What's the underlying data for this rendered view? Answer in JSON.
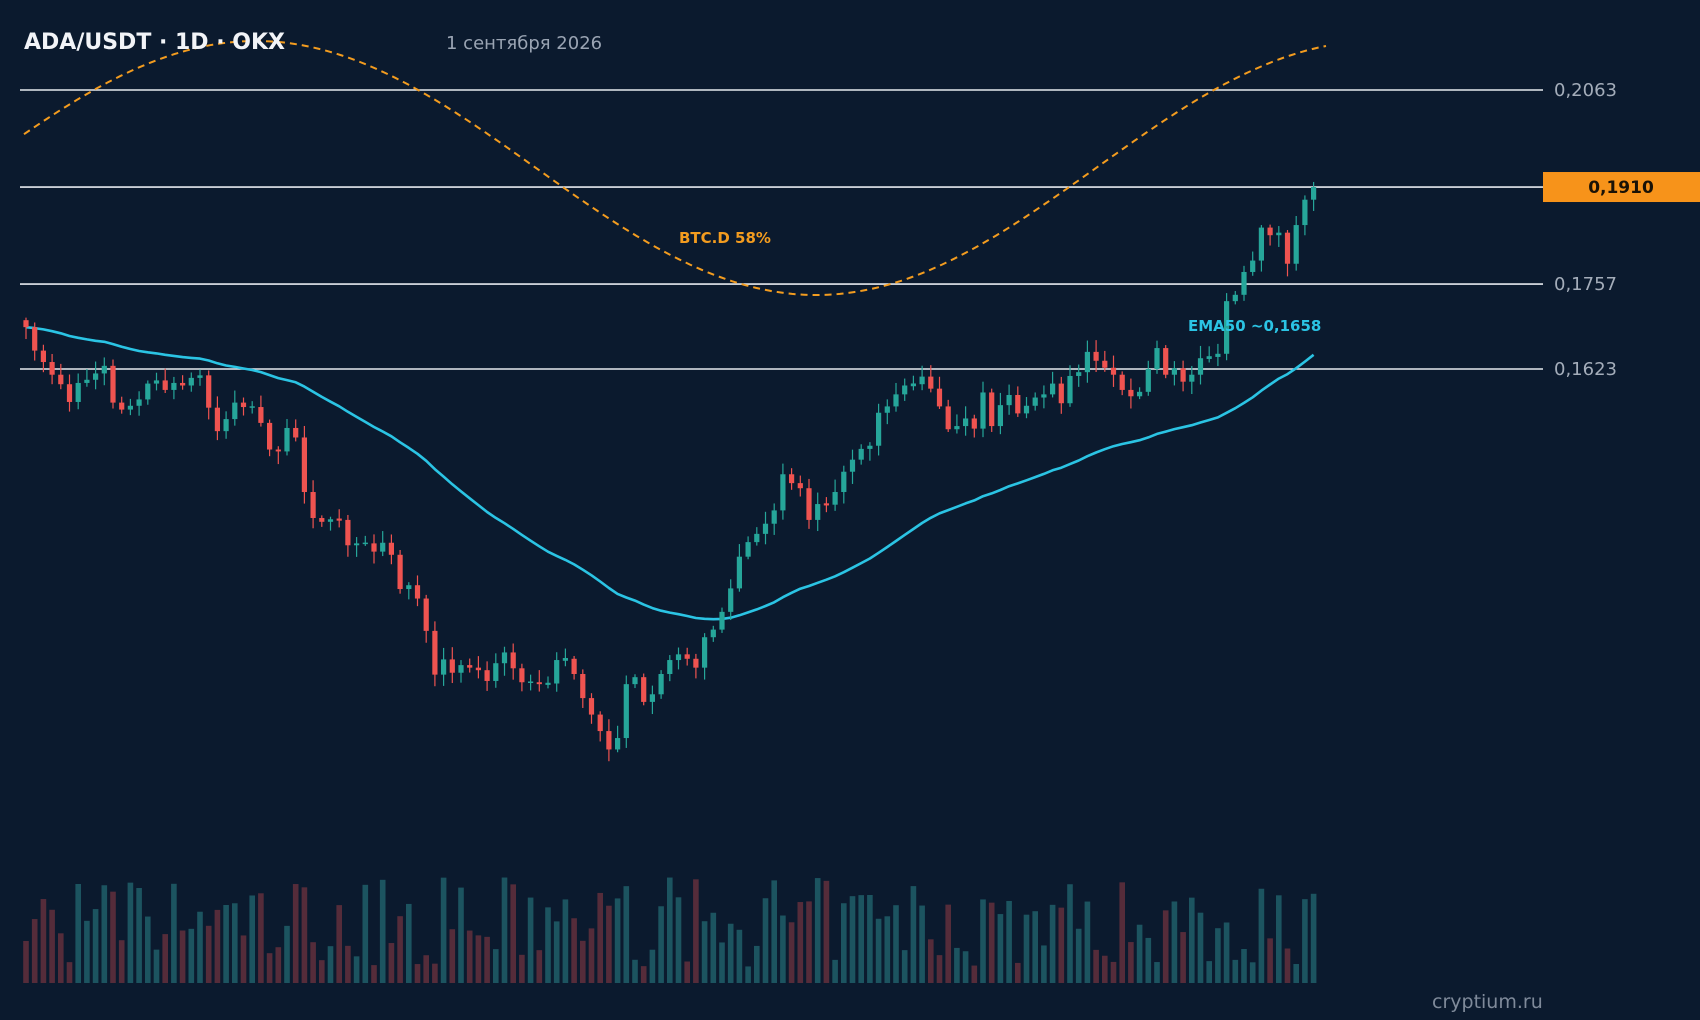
{
  "header": {
    "title": "ADA/USDT · 1D · OKX",
    "date": "1 сентября 2026"
  },
  "watermark": "cryptium.ru",
  "colors": {
    "background": "#0b1a2e",
    "up": "#26a69a",
    "down": "#ef5350",
    "ema": "#2bc4e4",
    "btcd": "#f39c1f",
    "level": "#e6e9ee",
    "price_tag": "#f7931a"
  },
  "chart_data": {
    "type": "candlestick",
    "pair": "ADA/USDT",
    "timeframe": "1D",
    "exchange": "OKX",
    "current_price": 0.191,
    "current_price_label": "0,1910",
    "levels": [
      {
        "value": 0.2063,
        "label": "0,2063"
      },
      {
        "value": 0.191,
        "label": "0,1910"
      },
      {
        "value": 0.1757,
        "label": "0,1757"
      },
      {
        "value": 0.1623,
        "label": "0,1623"
      }
    ],
    "annotations": {
      "btc_dominance": "BTC.D 58%",
      "ema": "EMA50 ~0,1658"
    },
    "closes": [
      0.1689,
      0.1652,
      0.1634,
      0.1614,
      0.1599,
      0.1571,
      0.1601,
      0.1606,
      0.1616,
      0.1628,
      0.157,
      0.1559,
      0.1565,
      0.1575,
      0.16,
      0.1605,
      0.159,
      0.1601,
      0.1597,
      0.1609,
      0.1613,
      0.1562,
      0.1525,
      0.1544,
      0.157,
      0.1563,
      0.1563,
      0.1538,
      0.1496,
      0.1493,
      0.153,
      0.1515,
      0.1429,
      0.1388,
      0.1382,
      0.1386,
      0.1385,
      0.1345,
      0.1348,
      0.1348,
      0.1335,
      0.1349,
      0.133,
      0.1276,
      0.1282,
      0.1261,
      0.121,
      0.1141,
      0.1165,
      0.1144,
      0.1156,
      0.1152,
      0.1148,
      0.1131,
      0.1159,
      0.1176,
      0.1151,
      0.1129,
      0.1129,
      0.1126,
      0.1127,
      0.1164,
      0.1166,
      0.1142,
      0.1104,
      0.1078,
      0.1052,
      0.1023,
      0.1041,
      0.1126,
      0.1137,
      0.1098,
      0.111,
      0.1142,
      0.1164,
      0.1173,
      0.1166,
      0.1152,
      0.12,
      0.1212,
      0.124,
      0.1277,
      0.1327,
      0.135,
      0.1363,
      0.1379,
      0.14,
      0.1457,
      0.1443,
      0.1435,
      0.1385,
      0.141,
      0.1409,
      0.1429,
      0.1461,
      0.148,
      0.1497,
      0.1502,
      0.1554,
      0.1564,
      0.1583,
      0.1597,
      0.1599,
      0.1611,
      0.1592,
      0.1564,
      0.1528,
      0.1533,
      0.1545,
      0.1529,
      0.1586,
      0.1533,
      0.1566,
      0.1582,
      0.1553,
      0.1565,
      0.1578,
      0.1583,
      0.16,
      0.1569,
      0.1612,
      0.1618,
      0.165,
      0.1636,
      0.1625,
      0.1614,
      0.159,
      0.158,
      0.1587,
      0.1623,
      0.1656,
      0.1614,
      0.1624,
      0.1603,
      0.1614,
      0.164,
      0.1642,
      0.1647,
      0.173,
      0.174,
      0.1776,
      0.1794,
      0.1846,
      0.1834,
      0.1838,
      0.1789,
      0.185,
      0.189,
      0.191
    ],
    "y_axis": {
      "min": 0.1,
      "max": 0.215,
      "decimal_separator": ","
    },
    "grid": false,
    "legend": "none"
  }
}
